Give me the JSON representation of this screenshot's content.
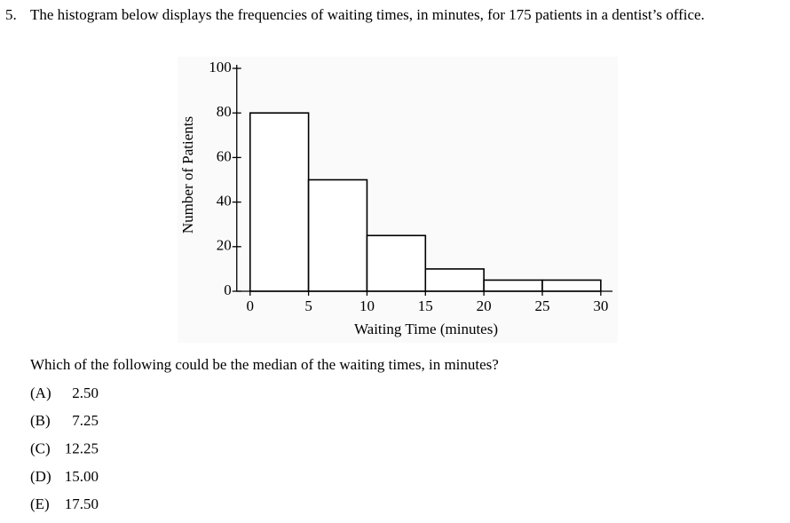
{
  "question": {
    "number": "5.",
    "text": "The histogram below displays the frequencies of waiting times, in minutes, for 175 patients in a dentist’s office."
  },
  "chart_data": {
    "type": "histogram",
    "x_label": "Waiting Time (minutes)",
    "y_label": "Number of Patients",
    "bins": [
      0,
      5,
      10,
      15,
      20,
      25,
      30
    ],
    "values": [
      80,
      50,
      25,
      10,
      5,
      5
    ],
    "xlim": [
      -1.5,
      31
    ],
    "ylim": [
      0,
      100
    ],
    "xticks": [
      0,
      5,
      10,
      15,
      20,
      25,
      30
    ],
    "yticks": [
      0,
      20,
      40,
      60,
      80,
      100
    ],
    "color": "#ffffff",
    "edge_color": "#000000"
  },
  "prompt": "Which of the following could be the median of the waiting times, in minutes?",
  "choices": [
    {
      "letter": "(A)",
      "text": "2.50"
    },
    {
      "letter": "(B)",
      "text": "7.25"
    },
    {
      "letter": "(C)",
      "text": "12.25"
    },
    {
      "letter": "(D)",
      "text": "15.00"
    },
    {
      "letter": "(E)",
      "text": "17.50"
    }
  ]
}
